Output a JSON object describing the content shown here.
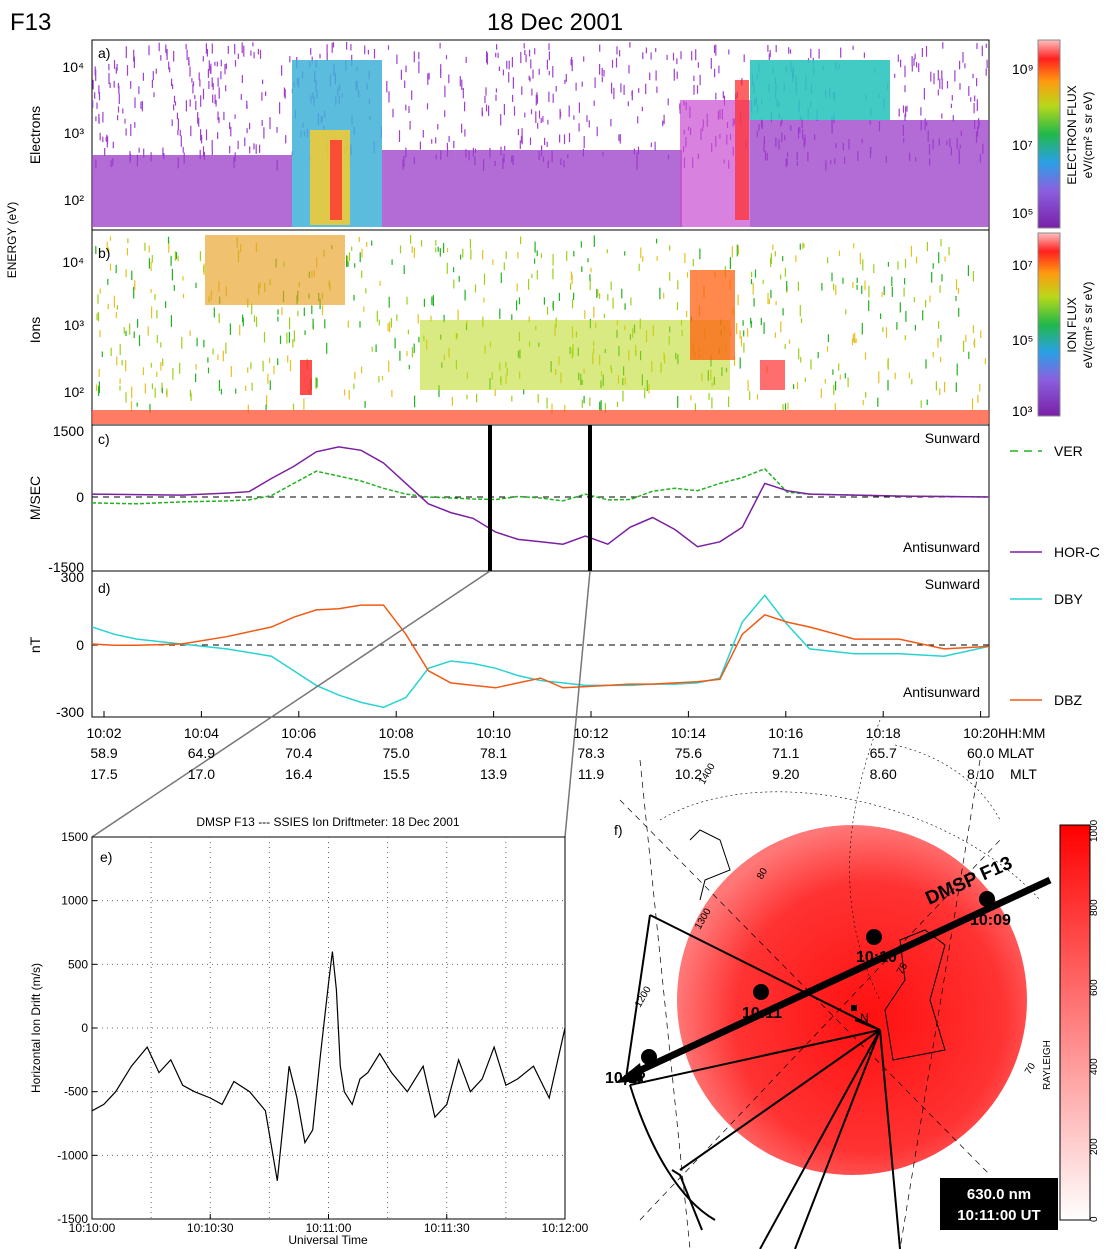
{
  "header": {
    "satellite": "F13",
    "date": "18 Dec 2001"
  },
  "panels": {
    "a": {
      "tag": "a)",
      "ylabel": "Electrons"
    },
    "b": {
      "tag": "b)",
      "ylabel": "Ions"
    },
    "shared_ylabel": "ENERGY (eV)",
    "c": {
      "tag": "c)",
      "ylabel": "M/SEC",
      "sunward": "Sunward",
      "antisunward": "Antisunward"
    },
    "d": {
      "tag": "d)",
      "ylabel": "nT",
      "sunward": "Sunward",
      "antisunward": "Antisunward"
    },
    "e": {
      "tag": "e)",
      "title": "DMSP F13 --- SSIES Ion Driftmeter: 18 Dec 2001",
      "xlabel": "Universal Time",
      "ylabel": "Horizontal Ion Drift (m/s)"
    },
    "f": {
      "tag": "f)",
      "track_label": "DMSP F13",
      "wavelength": "630.0 nm",
      "time": "10:11:00 UT",
      "colorbar_label": "RAYLEIGH",
      "north_marker": "N"
    }
  },
  "colorbars": {
    "electron": {
      "label1": "ELECTRON FLUX",
      "label2": "eV/(cm² s sr eV)",
      "ticks": [
        "10⁹",
        "10⁷",
        "10⁵"
      ]
    },
    "ion": {
      "label1": "ION FLUX",
      "label2": "eV/(cm² s sr eV)",
      "ticks": [
        "10⁷",
        "10⁵",
        "10³"
      ]
    },
    "rayleigh_ticks": [
      "1000",
      "800",
      "600",
      "400",
      "200",
      "0"
    ]
  },
  "legend": {
    "ver": "VER",
    "horc": "HOR-C",
    "dby": "DBY",
    "dbz": "DBZ"
  },
  "colors": {
    "ver": "#22b222",
    "horc": "#7b1fa2",
    "dby": "#29d3d3",
    "dbz": "#f05a14",
    "aurora": "#ff0000"
  },
  "axis_table": {
    "time": [
      "10:02",
      "10:04",
      "10:06",
      "10:08",
      "10:10",
      "10:12",
      "10:14",
      "10:16",
      "10:18",
      "10:20"
    ],
    "mlat": [
      "58.9",
      "64.9",
      "70.4",
      "75.0",
      "78.1",
      "78.3",
      "75.6",
      "71.1",
      "65.7",
      "60.0"
    ],
    "mlt": [
      "17.5",
      "17.0",
      "16.4",
      "15.5",
      "13.9",
      "11.9",
      "10.2",
      "9.20",
      "8.60",
      "8.10"
    ],
    "unit_time": "HH:MM",
    "unit_mlat": "MLAT",
    "unit_mlt": "MLT"
  },
  "energy_ticks": [
    "10⁴",
    "10³",
    "10²"
  ],
  "map_labels": {
    "contours": [
      "1400",
      "1300",
      "1200",
      "80",
      "75",
      "70"
    ]
  },
  "chart_data": [
    {
      "id": "c",
      "type": "line",
      "x_range": [
        "10:02",
        "10:20"
      ],
      "ylim": [
        -1500,
        1500
      ],
      "yticks": [
        "1500",
        "0",
        "-1500"
      ],
      "x_minutes": [
        0,
        1,
        2,
        3,
        3.5,
        4,
        4.5,
        5,
        5.5,
        6,
        6.5,
        7,
        7.5,
        8,
        8.5,
        9,
        9.5,
        10,
        10.5,
        11,
        11.5,
        12,
        12.5,
        13,
        13.5,
        14,
        14.5,
        15,
        15.5,
        16,
        17,
        18,
        19,
        20
      ],
      "series": [
        {
          "name": "VER",
          "values": [
            -100,
            -120,
            -80,
            -60,
            -40,
            50,
            300,
            550,
            450,
            350,
            200,
            80,
            20,
            0,
            -20,
            -30,
            30,
            0,
            -60,
            80,
            -40,
            -30,
            140,
            200,
            150,
            300,
            420,
            600,
            120,
            80,
            60,
            40,
            30,
            20
          ]
        },
        {
          "name": "HOR-C",
          "values": [
            80,
            70,
            60,
            100,
            130,
            400,
            650,
            950,
            1050,
            980,
            720,
            300,
            -120,
            -300,
            -420,
            -700,
            -850,
            -900,
            -950,
            -780,
            -950,
            -600,
            -400,
            -650,
            -1000,
            -900,
            -600,
            300,
            150,
            80,
            60,
            40,
            30,
            20
          ]
        }
      ]
    },
    {
      "id": "d",
      "type": "line",
      "x_range": [
        "10:02",
        "10:20"
      ],
      "ylim": [
        -300,
        300
      ],
      "yticks": [
        "300",
        "0",
        "-300"
      ],
      "x_minutes": [
        0,
        0.5,
        1,
        2,
        3,
        4,
        4.5,
        5,
        5.5,
        6,
        6.5,
        7,
        7.5,
        8,
        8.5,
        9,
        9.5,
        10,
        10.5,
        11,
        11.5,
        12,
        12.5,
        13,
        13.5,
        14,
        14.5,
        15,
        15.5,
        16,
        17,
        18,
        19,
        20
      ],
      "series": [
        {
          "name": "DBY",
          "values": [
            70,
            40,
            20,
            0,
            -20,
            -50,
            -110,
            -170,
            -210,
            -240,
            -260,
            -220,
            -100,
            -70,
            -80,
            -100,
            -130,
            -150,
            -160,
            -170,
            -170,
            -170,
            -165,
            -165,
            -160,
            -140,
            90,
            200,
            80,
            -20,
            -40,
            -40,
            -50,
            -10
          ]
        },
        {
          "name": "DBZ",
          "values": [
            0,
            -5,
            -5,
            0,
            30,
            70,
            110,
            140,
            145,
            160,
            160,
            40,
            -110,
            -160,
            -170,
            -180,
            -160,
            -140,
            -180,
            -175,
            -170,
            -165,
            -165,
            -160,
            -155,
            -145,
            40,
            120,
            90,
            70,
            20,
            20,
            -20,
            -10
          ]
        }
      ]
    },
    {
      "id": "e",
      "type": "line",
      "xlabel": "Universal Time",
      "ylabel": "Horizontal Ion Drift (m/s)",
      "ylim": [
        -1500,
        1500
      ],
      "yticks": [
        "1500",
        "1000",
        "500",
        "0",
        "-500",
        "-1000",
        "-1500"
      ],
      "xticks": [
        "10:10:00",
        "10:10:30",
        "10:11:00",
        "10:11:30",
        "10:12:00"
      ],
      "x_seconds": [
        0,
        3,
        6,
        10,
        14,
        17,
        20,
        23,
        26,
        30,
        33,
        36,
        40,
        44,
        47,
        50,
        52,
        54,
        56,
        58,
        60,
        61,
        62,
        63,
        64,
        66,
        68,
        70,
        73,
        76,
        80,
        84,
        87,
        90,
        93,
        96,
        99,
        102,
        105,
        108,
        112,
        116,
        120
      ],
      "series": [
        {
          "name": "Horizontal ion drift",
          "values": [
            -650,
            -600,
            -500,
            -300,
            -150,
            -350,
            -250,
            -450,
            -500,
            -550,
            -600,
            -420,
            -500,
            -650,
            -1200,
            -300,
            -550,
            -900,
            -800,
            -200,
            350,
            600,
            300,
            -300,
            -500,
            -600,
            -400,
            -350,
            -200,
            -350,
            -500,
            -300,
            -700,
            -600,
            -250,
            -500,
            -400,
            -150,
            -450,
            -400,
            -300,
            -550,
            0
          ]
        }
      ]
    }
  ]
}
